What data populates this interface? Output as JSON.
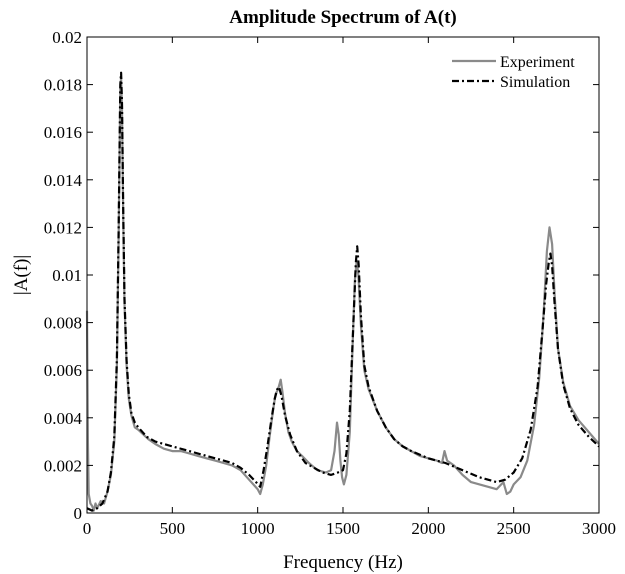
{
  "chart_data": {
    "type": "line",
    "title": "Amplitude Spectrum of A(t)",
    "xlabel": "Frequency (Hz)",
    "ylabel": "|A(f)|",
    "xlim": [
      0,
      3000
    ],
    "ylim": [
      0,
      0.02
    ],
    "x_ticks": [
      0,
      500,
      1000,
      1500,
      2000,
      2500,
      3000
    ],
    "x_tick_labels": [
      "0",
      "500",
      "1000",
      "1500",
      "2000",
      "2500",
      "3000"
    ],
    "y_ticks": [
      0,
      0.002,
      0.004,
      0.006,
      0.008,
      0.01,
      0.012,
      0.014,
      0.016,
      0.018,
      0.02
    ],
    "y_tick_labels": [
      "0",
      "0.002",
      "0.004",
      "0.006",
      "0.008",
      "0.01",
      "0.012",
      "0.014",
      "0.016",
      "0.018",
      "0.02"
    ],
    "grid": false,
    "legend_position": "top-right",
    "colors": {
      "experiment": "#8a8a8a",
      "simulation": "#000000"
    },
    "series": [
      {
        "name": "Experiment",
        "style": "solid",
        "points": [
          [
            0,
            0.0085
          ],
          [
            5,
            0.003
          ],
          [
            10,
            0.0008
          ],
          [
            20,
            0.0004
          ],
          [
            30,
            0.0003
          ],
          [
            40,
            0.0001
          ],
          [
            50,
            0.0004
          ],
          [
            60,
            0.0002
          ],
          [
            80,
            0.0005
          ],
          [
            100,
            0.0004
          ],
          [
            120,
            0.0009
          ],
          [
            140,
            0.0016
          ],
          [
            160,
            0.003
          ],
          [
            175,
            0.0062
          ],
          [
            185,
            0.0115
          ],
          [
            195,
            0.0178
          ],
          [
            200,
            0.0183
          ],
          [
            205,
            0.017
          ],
          [
            212,
            0.0125
          ],
          [
            220,
            0.0088
          ],
          [
            232,
            0.0062
          ],
          [
            245,
            0.0048
          ],
          [
            260,
            0.0041
          ],
          [
            280,
            0.0036
          ],
          [
            300,
            0.0035
          ],
          [
            330,
            0.0033
          ],
          [
            360,
            0.0031
          ],
          [
            400,
            0.0029
          ],
          [
            450,
            0.0027
          ],
          [
            500,
            0.0026
          ],
          [
            550,
            0.0026
          ],
          [
            600,
            0.0025
          ],
          [
            650,
            0.0024
          ],
          [
            700,
            0.0023
          ],
          [
            750,
            0.0022
          ],
          [
            800,
            0.0021
          ],
          [
            850,
            0.002
          ],
          [
            900,
            0.0018
          ],
          [
            950,
            0.0014
          ],
          [
            1000,
            0.001
          ],
          [
            1015,
            0.0008
          ],
          [
            1030,
            0.0012
          ],
          [
            1050,
            0.002
          ],
          [
            1070,
            0.0032
          ],
          [
            1090,
            0.0043
          ],
          [
            1105,
            0.005
          ],
          [
            1120,
            0.0052
          ],
          [
            1135,
            0.0056
          ],
          [
            1145,
            0.0051
          ],
          [
            1160,
            0.0042
          ],
          [
            1180,
            0.0034
          ],
          [
            1200,
            0.003
          ],
          [
            1230,
            0.0026
          ],
          [
            1260,
            0.0024
          ],
          [
            1300,
            0.0021
          ],
          [
            1350,
            0.0018
          ],
          [
            1400,
            0.0017
          ],
          [
            1430,
            0.0018
          ],
          [
            1450,
            0.0026
          ],
          [
            1465,
            0.0038
          ],
          [
            1475,
            0.0033
          ],
          [
            1485,
            0.0022
          ],
          [
            1495,
            0.0015
          ],
          [
            1505,
            0.0012
          ],
          [
            1520,
            0.0016
          ],
          [
            1540,
            0.0034
          ],
          [
            1555,
            0.0068
          ],
          [
            1570,
            0.0098
          ],
          [
            1580,
            0.0106
          ],
          [
            1590,
            0.01
          ],
          [
            1605,
            0.0079
          ],
          [
            1625,
            0.006
          ],
          [
            1650,
            0.0052
          ],
          [
            1700,
            0.0043
          ],
          [
            1750,
            0.0036
          ],
          [
            1800,
            0.0031
          ],
          [
            1850,
            0.0028
          ],
          [
            1900,
            0.0026
          ],
          [
            1950,
            0.0024
          ],
          [
            2000,
            0.0023
          ],
          [
            2050,
            0.0022
          ],
          [
            2080,
            0.0021
          ],
          [
            2095,
            0.0026
          ],
          [
            2110,
            0.0022
          ],
          [
            2150,
            0.002
          ],
          [
            2200,
            0.0016
          ],
          [
            2250,
            0.0013
          ],
          [
            2300,
            0.0012
          ],
          [
            2350,
            0.0011
          ],
          [
            2400,
            0.001
          ],
          [
            2440,
            0.0013
          ],
          [
            2460,
            0.0008
          ],
          [
            2480,
            0.0009
          ],
          [
            2500,
            0.0012
          ],
          [
            2540,
            0.0015
          ],
          [
            2580,
            0.0022
          ],
          [
            2620,
            0.0037
          ],
          [
            2650,
            0.0057
          ],
          [
            2675,
            0.0083
          ],
          [
            2695,
            0.011
          ],
          [
            2710,
            0.012
          ],
          [
            2725,
            0.0113
          ],
          [
            2740,
            0.0092
          ],
          [
            2760,
            0.0069
          ],
          [
            2790,
            0.0055
          ],
          [
            2830,
            0.0045
          ],
          [
            2880,
            0.0039
          ],
          [
            2940,
            0.0034
          ],
          [
            3000,
            0.0029
          ]
        ]
      },
      {
        "name": "Simulation",
        "style": "dash-dot",
        "points": [
          [
            0,
            0.0002
          ],
          [
            30,
            0.0001
          ],
          [
            60,
            0.0002
          ],
          [
            90,
            0.0004
          ],
          [
            120,
            0.0009
          ],
          [
            140,
            0.0017
          ],
          [
            160,
            0.0032
          ],
          [
            175,
            0.0065
          ],
          [
            185,
            0.0118
          ],
          [
            195,
            0.018
          ],
          [
            200,
            0.0185
          ],
          [
            205,
            0.0172
          ],
          [
            212,
            0.0128
          ],
          [
            220,
            0.009
          ],
          [
            232,
            0.0064
          ],
          [
            245,
            0.005
          ],
          [
            260,
            0.0042
          ],
          [
            280,
            0.0038
          ],
          [
            300,
            0.0036
          ],
          [
            350,
            0.0032
          ],
          [
            400,
            0.003
          ],
          [
            450,
            0.0029
          ],
          [
            500,
            0.0028
          ],
          [
            600,
            0.0026
          ],
          [
            700,
            0.0024
          ],
          [
            800,
            0.0022
          ],
          [
            850,
            0.0021
          ],
          [
            900,
            0.0019
          ],
          [
            950,
            0.0016
          ],
          [
            990,
            0.0013
          ],
          [
            1015,
            0.0011
          ],
          [
            1035,
            0.0018
          ],
          [
            1055,
            0.0027
          ],
          [
            1080,
            0.0039
          ],
          [
            1100,
            0.0048
          ],
          [
            1115,
            0.0052
          ],
          [
            1125,
            0.0053
          ],
          [
            1140,
            0.0049
          ],
          [
            1160,
            0.0041
          ],
          [
            1190,
            0.0033
          ],
          [
            1230,
            0.0026
          ],
          [
            1280,
            0.0021
          ],
          [
            1330,
            0.0019
          ],
          [
            1380,
            0.0017
          ],
          [
            1430,
            0.0016
          ],
          [
            1470,
            0.0017
          ],
          [
            1500,
            0.0018
          ],
          [
            1520,
            0.0025
          ],
          [
            1540,
            0.0043
          ],
          [
            1560,
            0.0078
          ],
          [
            1575,
            0.0105
          ],
          [
            1583,
            0.0112
          ],
          [
            1592,
            0.0104
          ],
          [
            1605,
            0.0083
          ],
          [
            1625,
            0.0062
          ],
          [
            1650,
            0.0053
          ],
          [
            1700,
            0.0043
          ],
          [
            1750,
            0.0036
          ],
          [
            1800,
            0.0031
          ],
          [
            1850,
            0.0028
          ],
          [
            1900,
            0.0026
          ],
          [
            2000,
            0.0023
          ],
          [
            2100,
            0.0021
          ],
          [
            2200,
            0.0018
          ],
          [
            2300,
            0.0015
          ],
          [
            2400,
            0.0013
          ],
          [
            2450,
            0.0014
          ],
          [
            2500,
            0.0017
          ],
          [
            2550,
            0.0023
          ],
          [
            2600,
            0.0035
          ],
          [
            2640,
            0.0053
          ],
          [
            2670,
            0.0078
          ],
          [
            2690,
            0.0096
          ],
          [
            2705,
            0.0105
          ],
          [
            2715,
            0.0109
          ],
          [
            2725,
            0.0104
          ],
          [
            2740,
            0.0088
          ],
          [
            2760,
            0.0069
          ],
          [
            2790,
            0.0054
          ],
          [
            2830,
            0.0044
          ],
          [
            2880,
            0.0037
          ],
          [
            2940,
            0.0032
          ],
          [
            3000,
            0.0028
          ]
        ]
      }
    ]
  }
}
